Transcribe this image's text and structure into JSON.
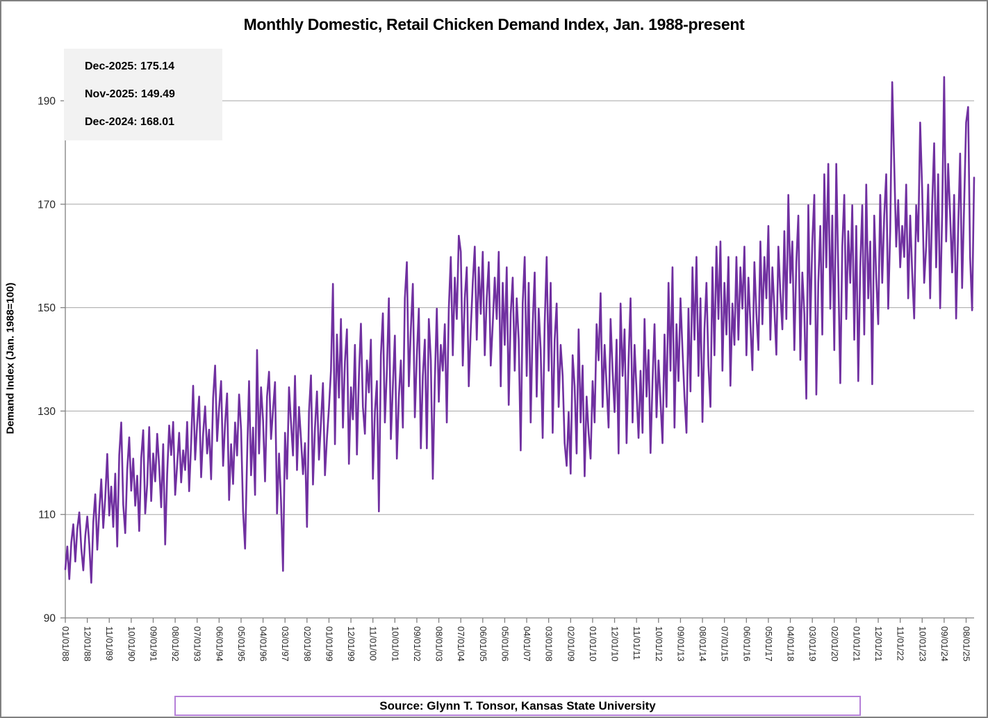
{
  "title": "Monthly Domestic, Retail Chicken Demand Index, Jan. 1988-present",
  "annotation": {
    "lines": [
      "Dec-2025: 175.14",
      "Nov-2025: 149.49",
      "Dec-2024: 168.01"
    ]
  },
  "source": {
    "text": "Source: Glynn T. Tonsor, Kansas State University"
  },
  "colors": {
    "line": "#7030A0",
    "gridline": "#A6A6A6",
    "axis": "#808080",
    "tick_label": "#262626",
    "annotation_bg": "#F2F2F2",
    "source_border": "#B57FD8"
  },
  "chart_data": {
    "type": "line",
    "title": "Monthly Domestic, Retail Chicken Demand Index, Jan. 1988-present",
    "xlabel": "",
    "ylabel": "Demand Index (Jan. 1988=100)",
    "ylim": [
      90,
      196
    ],
    "yticks": [
      90,
      110,
      130,
      150,
      170,
      190
    ],
    "grid": "horizontal",
    "legend_position": "none",
    "x_start": "1988-01",
    "frequency": "monthly",
    "x_tick_month_step": 11,
    "x_tick_labels": [
      "01/01/88",
      "12/01/88",
      "11/01/89",
      "10/01/90",
      "09/01/91",
      "08/01/92",
      "07/01/93",
      "06/01/94",
      "05/01/95",
      "04/01/96",
      "03/01/97",
      "02/01/98",
      "01/01/99",
      "12/01/99",
      "11/01/00",
      "10/01/01",
      "09/01/02",
      "08/01/03",
      "07/01/04",
      "06/01/05",
      "05/01/06",
      "04/01/07",
      "03/01/08",
      "02/01/09",
      "01/01/10",
      "12/01/10",
      "11/01/11",
      "10/01/12",
      "09/01/13",
      "08/01/14",
      "07/01/15",
      "06/01/16",
      "05/01/17",
      "04/01/18",
      "03/01/19",
      "02/01/20",
      "01/01/21",
      "12/01/21",
      "11/01/22",
      "10/01/23",
      "09/01/24",
      "08/01/25"
    ],
    "series": [
      {
        "name": "Retail Chicken Demand Index",
        "color": "#7030A0",
        "values": [
          99.4,
          103.8,
          97.5,
          104.6,
          108.1,
          100.9,
          107.2,
          110.4,
          103.5,
          99.2,
          105.8,
          109.6,
          104.2,
          96.8,
          108.5,
          113.9,
          103.2,
          110.6,
          116.8,
          107.4,
          113.2,
          121.7,
          109.8,
          115.4,
          107.6,
          117.9,
          103.8,
          121.5,
          127.8,
          111.9,
          106.4,
          118.7,
          124.9,
          114.6,
          120.8,
          111.7,
          117.5,
          106.8,
          120.9,
          126.3,
          110.2,
          115.8,
          126.9,
          112.6,
          121.8,
          116.4,
          125.6,
          119.3,
          111.4,
          123.6,
          104.2,
          117.8,
          127.2,
          121.5,
          127.9,
          113.8,
          119.6,
          125.8,
          116.2,
          122.4,
          118.6,
          127.9,
          114.5,
          123.8,
          134.9,
          120.6,
          127.4,
          132.8,
          117.2,
          125.6,
          130.9,
          121.8,
          126.4,
          116.8,
          132.5,
          138.8,
          124.2,
          130.6,
          135.8,
          119.4,
          127.6,
          133.4,
          112.8,
          123.6,
          115.9,
          127.8,
          121.4,
          133.2,
          126.4,
          110.6,
          103.4,
          120.8,
          135.8,
          117.6,
          126.8,
          113.8,
          141.8,
          121.8,
          134.6,
          128.2,
          116.4,
          132.8,
          137.6,
          124.6,
          130.2,
          135.6,
          110.2,
          121.8,
          112.6,
          99.1,
          125.8,
          116.9,
          134.6,
          127.8,
          121.4,
          136.8,
          118.6,
          130.8,
          124.6,
          117.8,
          123.8,
          107.6,
          129.8,
          136.9,
          115.8,
          126.8,
          133.8,
          120.6,
          127.8,
          135.4,
          117.6,
          124.8,
          130.6,
          137.8,
          154.6,
          123.6,
          144.8,
          132.6,
          147.8,
          126.8,
          139.6,
          145.8,
          119.8,
          134.6,
          128.4,
          142.8,
          121.6,
          136.8,
          146.9,
          130.8,
          125.6,
          139.8,
          133.6,
          143.8,
          116.9,
          129.8,
          135.8,
          110.6,
          140.8,
          148.9,
          127.8,
          137.8,
          151.8,
          124.6,
          134.8,
          144.6,
          120.8,
          132.8,
          139.8,
          126.8,
          151.8,
          158.8,
          134.8,
          145.8,
          154.6,
          128.8,
          140.8,
          149.8,
          122.8,
          136.8,
          143.8,
          122.8,
          147.8,
          139.8,
          116.9,
          135.8,
          149.8,
          131.8,
          142.8,
          137.8,
          146.8,
          127.8,
          149.8,
          159.8,
          140.8,
          155.8,
          147.8,
          163.9,
          160.8,
          138.8,
          151.8,
          157.8,
          134.8,
          145.8,
          154.8,
          161.8,
          143.8,
          157.8,
          148.8,
          160.8,
          140.8,
          151.8,
          158.8,
          138.8,
          146.8,
          155.8,
          147.8,
          160.8,
          134.8,
          154.8,
          142.8,
          157.8,
          131.2,
          148.8,
          155.8,
          137.8,
          151.8,
          143.8,
          122.4,
          150.8,
          159.8,
          136.8,
          154.8,
          127.8,
          146.8,
          156.8,
          132.8,
          149.8,
          141.8,
          124.8,
          146.8,
          159.8,
          137.8,
          154.8,
          125.8,
          143.8,
          150.8,
          130.8,
          142.8,
          136.8,
          123.8,
          119.4,
          129.8,
          117.9,
          140.8,
          134.8,
          121.8,
          145.8,
          127.8,
          138.8,
          117.4,
          132.8,
          125.8,
          120.8,
          135.8,
          127.8,
          146.8,
          139.8,
          152.8,
          130.8,
          142.8,
          134.8,
          126.8,
          147.8,
          137.8,
          129.8,
          143.8,
          121.8,
          150.8,
          136.8,
          145.8,
          123.8,
          139.8,
          151.8,
          127.8,
          142.8,
          133.8,
          124.8,
          137.8,
          125.8,
          147.8,
          132.8,
          141.8,
          121.9,
          135.8,
          146.8,
          128.8,
          139.8,
          131.8,
          123.8,
          144.8,
          130.8,
          154.8,
          137.8,
          157.8,
          126.8,
          146.8,
          135.8,
          151.8,
          141.8,
          132.8,
          125.8,
          149.8,
          133.8,
          157.8,
          143.8,
          159.8,
          136.8,
          151.8,
          127.9,
          145.8,
          154.8,
          138.8,
          130.8,
          157.8,
          140.8,
          161.8,
          147.8,
          162.8,
          137.8,
          154.8,
          144.8,
          159.8,
          134.9,
          150.8,
          142.8,
          159.8,
          143.8,
          157.8,
          149.8,
          161.8,
          140.8,
          155.8,
          146.8,
          137.9,
          158.8,
          148.8,
          141.8,
          162.8,
          146.8,
          159.8,
          151.8,
          165.8,
          143.8,
          157.8,
          149.8,
          140.9,
          161.8,
          152.8,
          145.8,
          164.8,
          147.8,
          171.8,
          154.8,
          162.8,
          141.8,
          158.8,
          167.8,
          139.9,
          156.8,
          148.8,
          132.4,
          169.8,
          146.8,
          162.8,
          171.8,
          133.2,
          154.8,
          165.8,
          144.8,
          175.8,
          157.8,
          177.8,
          149.8,
          167.8,
          141.8,
          177.8,
          156.8,
          135.4,
          161.8,
          171.8,
          147.8,
          164.8,
          154.8,
          169.8,
          143.8,
          165.8,
          135.8,
          157.8,
          169.8,
          144.8,
          173.8,
          151.8,
          162.8,
          135.2,
          167.8,
          155.8,
          146.8,
          171.8,
          154.8,
          167.8,
          175.8,
          149.8,
          164.8,
          193.6,
          177.8,
          161.8,
          170.8,
          157.8,
          165.8,
          159.8,
          173.8,
          151.8,
          167.8,
          156.8,
          147.9,
          169.8,
          162.8,
          185.8,
          172.8,
          154.8,
          161.8,
          173.8,
          151.8,
          169.8,
          181.8,
          157.8,
          175.8,
          149.9,
          167.8,
          194.6,
          162.8,
          177.8,
          168.01,
          156.8,
          171.8,
          147.9,
          164.8,
          179.8,
          153.8,
          169.8,
          185.8,
          188.8,
          159.8,
          149.49,
          175.14
        ]
      }
    ]
  }
}
